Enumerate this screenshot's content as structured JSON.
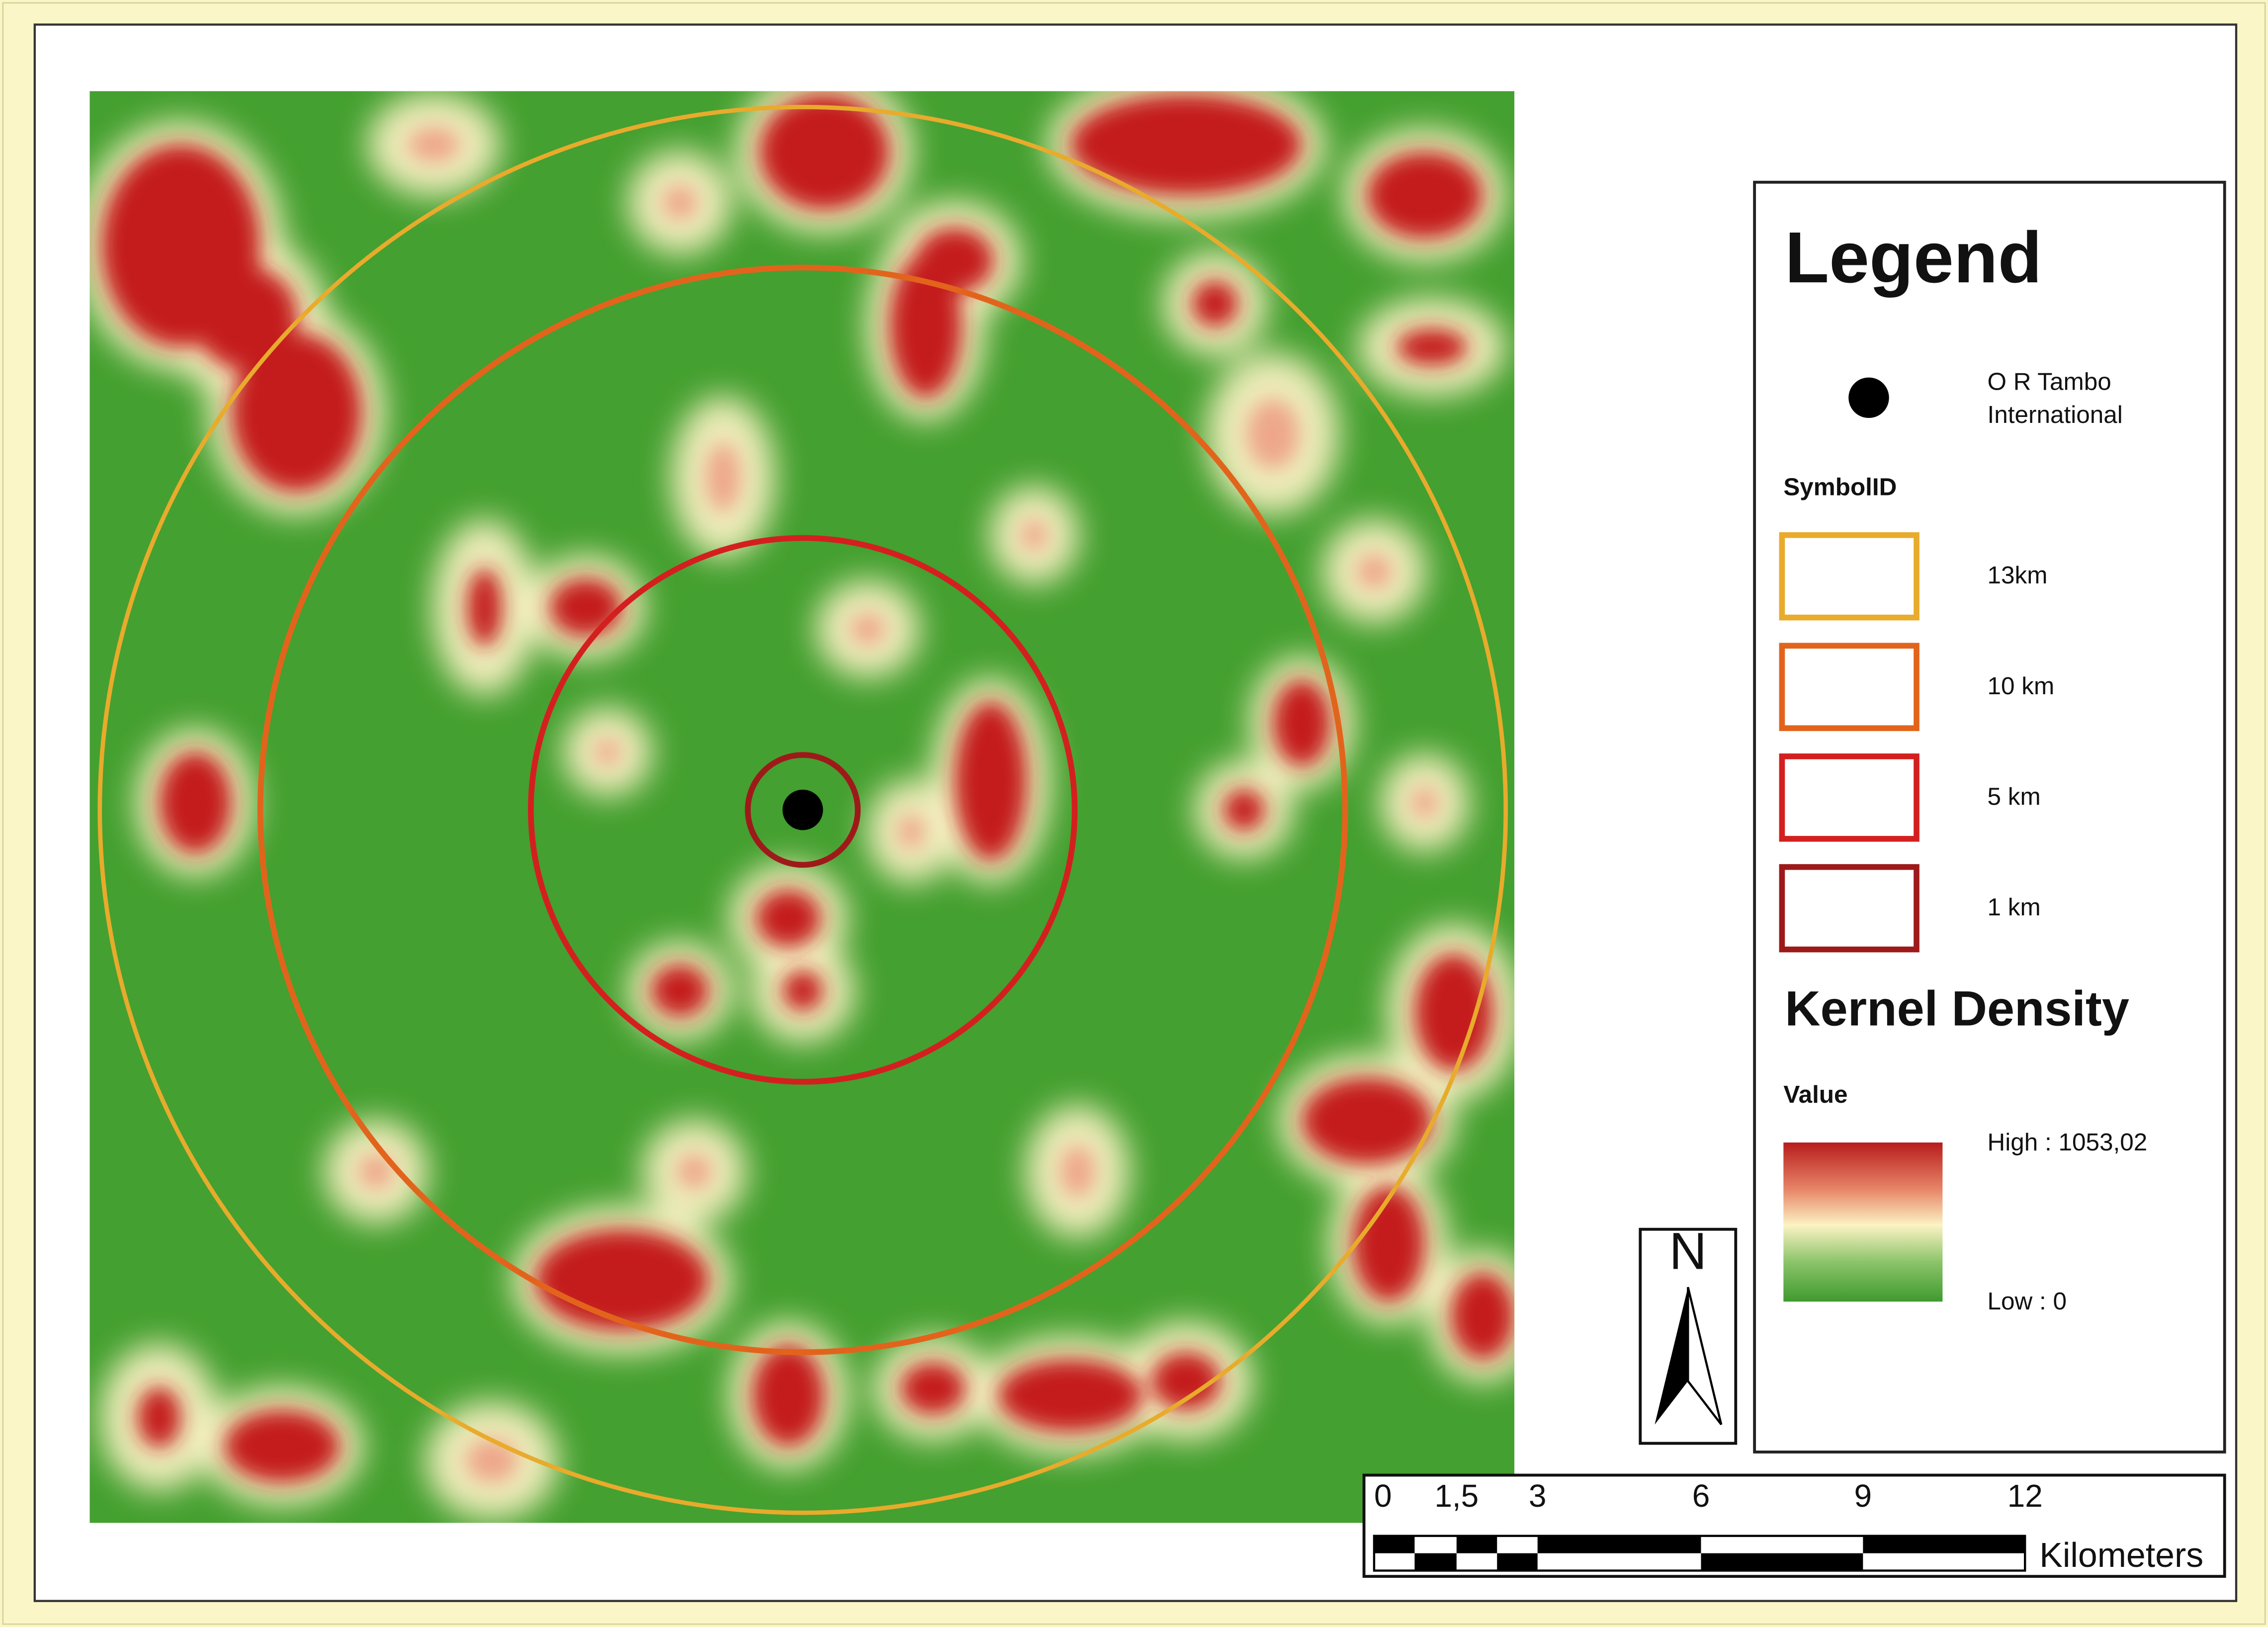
{
  "legend": {
    "title": "Legend",
    "point_label": [
      "O R Tambo",
      "International"
    ],
    "buffer_heading": "SymbolID",
    "buffers": [
      "13km",
      "10 km",
      "5 km",
      "1 km"
    ],
    "density_title": "Kernel Density",
    "density_heading": "Value",
    "high_label": "High : 1053,02",
    "low_label": "Low : 0"
  },
  "north_arrow": "N",
  "scale_bar": {
    "labels": [
      "0",
      "1,5",
      "3",
      "6",
      "9",
      "12"
    ],
    "unit": "Kilometers"
  }
}
